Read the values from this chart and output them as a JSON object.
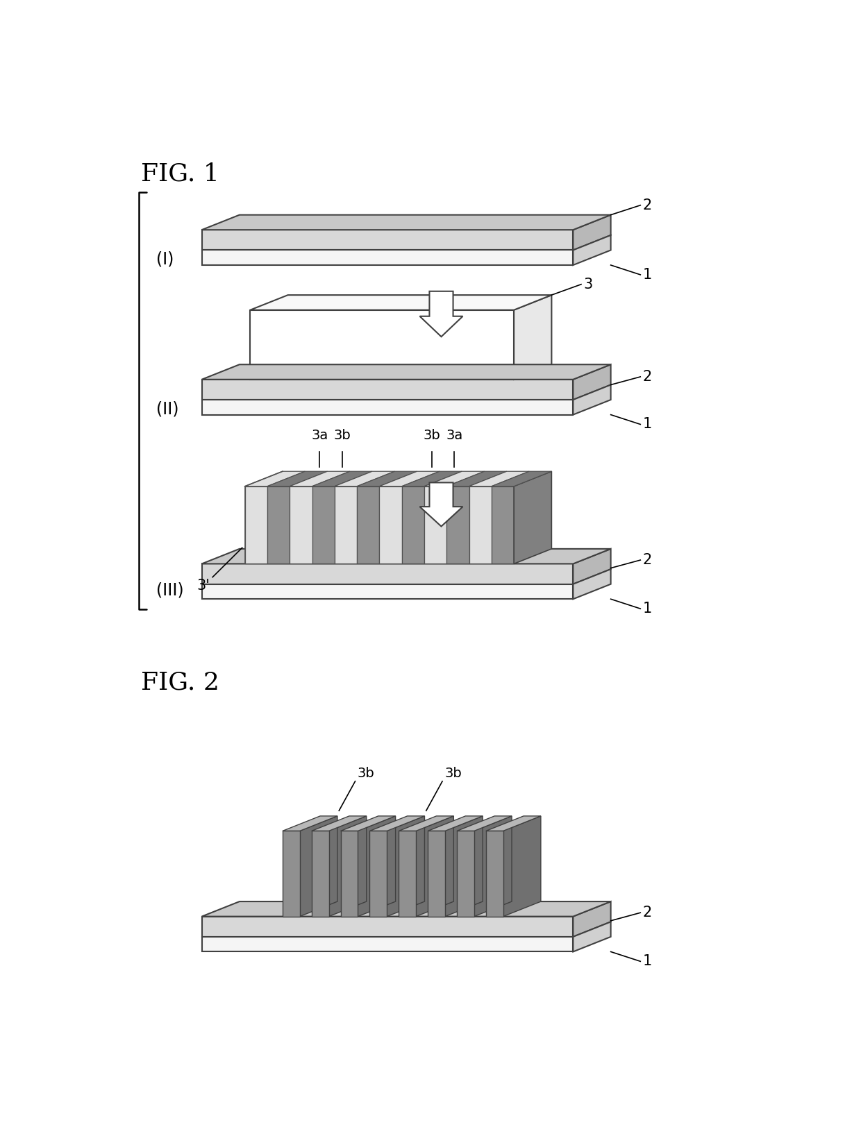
{
  "bg_color": "#ffffff",
  "fig_width": 12.4,
  "fig_height": 16.37,
  "fig1_title": "FIG. 1",
  "fig2_title": "FIG. 2",
  "label_1": "1",
  "label_2": "2",
  "label_3": "3",
  "label_3prime": "3'",
  "label_3a": "3a",
  "label_3b": "3b",
  "label_I": "(I)",
  "label_II": "(II)",
  "label_III": "(III)",
  "color_black": "#000000",
  "color_white": "#ffffff",
  "layer1_top": "#e8e8e8",
  "layer1_front": "#f5f5f5",
  "layer1_right": "#d0d0d0",
  "layer2_top": "#c8c8c8",
  "layer2_front": "#d8d8d8",
  "layer2_right": "#b8b8b8",
  "block3_top": "#f8f8f8",
  "block3_front": "#ffffff",
  "block3_right": "#e8e8e8",
  "stripe_a_color": "#e0e0e0",
  "stripe_b_color": "#909090",
  "stripe_right_color": "#808080",
  "fig2_stripe_front": "#909090",
  "fig2_stripe_top": "#b8b8b8",
  "fig2_stripe_right": "#707070"
}
